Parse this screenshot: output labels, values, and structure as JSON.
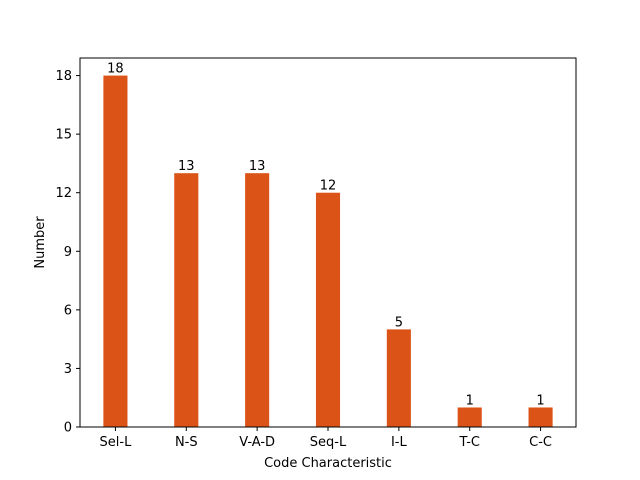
{
  "chart_data": {
    "type": "bar",
    "title": "",
    "xlabel": "Code Characteristic",
    "ylabel": "Number",
    "categories": [
      "Sel-L",
      "N-S",
      "V-A-D",
      "Seq-L",
      "I-L",
      "T-C",
      "C-C"
    ],
    "values": [
      18,
      13,
      13,
      12,
      5,
      1,
      1
    ],
    "data_labels": [
      "18",
      "13",
      "13",
      "12",
      "5",
      "1",
      "1"
    ],
    "ylim": [
      0,
      18.9
    ],
    "yticks": [
      0,
      3,
      6,
      9,
      12,
      15,
      18
    ],
    "ytick_labels": [
      "0",
      "3",
      "6",
      "9",
      "12",
      "15",
      "18"
    ],
    "grid": false,
    "legend": "none",
    "colors": {
      "bar": "#dc5318",
      "axis": "#000000"
    }
  }
}
